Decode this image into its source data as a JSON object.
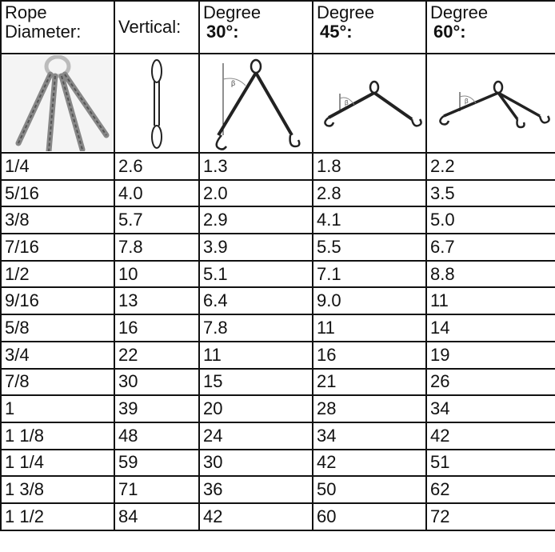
{
  "table": {
    "header": [
      {
        "line1": "Rope",
        "line2": "Diameter:"
      },
      {
        "line1": "Vertical:"
      },
      {
        "line1": "Degree",
        "line2": "30°:"
      },
      {
        "line1": "Degree",
        "line2": "45°:"
      },
      {
        "line1": "Degree",
        "line2": "60°:"
      }
    ],
    "rows": [
      [
        "1/4",
        "2.6",
        "1.3",
        "1.8",
        "2.2"
      ],
      [
        "5/16",
        "4.0",
        "2.0",
        "2.8",
        "3.5"
      ],
      [
        "3/8",
        "5.7",
        "2.9",
        "4.1",
        "5.0"
      ],
      [
        "7/16",
        "7.8",
        "3.9",
        "5.5",
        "6.7"
      ],
      [
        "1/2",
        "10",
        "5.1",
        "7.1",
        "8.8"
      ],
      [
        "9/16",
        "13",
        "6.4",
        "9.0",
        "11"
      ],
      [
        "5/8",
        "16",
        "7.8",
        "11",
        "14"
      ],
      [
        "3/4",
        "22",
        "11",
        "16",
        "19"
      ],
      [
        "7/8",
        "30",
        "15",
        "21",
        "26"
      ],
      [
        "1",
        "39",
        "20",
        "28",
        "34"
      ],
      [
        "1 1/8",
        "48",
        "24",
        "34",
        "42"
      ],
      [
        "1 1/4",
        "59",
        "30",
        "42",
        "51"
      ],
      [
        "1 3/8",
        "71",
        "36",
        "50",
        "62"
      ],
      [
        "1 1/2",
        "84",
        "42",
        "60",
        "72"
      ]
    ]
  }
}
